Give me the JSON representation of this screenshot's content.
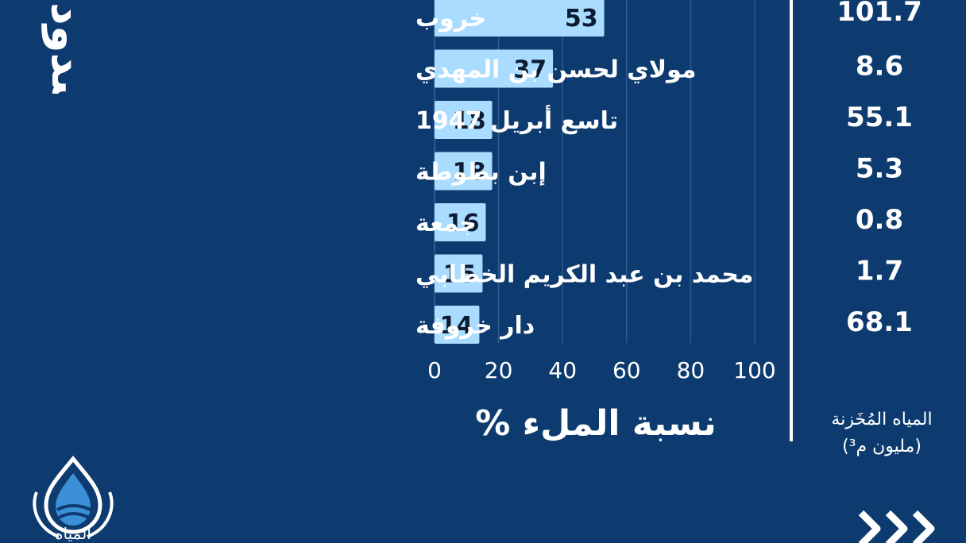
{
  "chart_data": {
    "type": "bar",
    "orientation": "horizontal",
    "categories": [
      "خروب",
      "مولاي لحسن بن المهدي",
      "تاسع أبريل 1947",
      "إبن بطوطة",
      "جمعة",
      "محمد بن عبد الكريم الخطابي",
      "دار خروفة"
    ],
    "values": [
      53,
      37,
      18,
      18,
      16,
      15,
      14
    ],
    "stored_values": [
      "101.7",
      "8.6",
      "55.1",
      "5.3",
      "0.8",
      "1.7",
      "68.1"
    ],
    "xticks": [
      "0",
      "20",
      "40",
      "60",
      "80",
      "100"
    ],
    "xlim": [
      0,
      100
    ],
    "xlabel": "نسبة الملء %",
    "stored_title_line1": "المياه المُخَزنة",
    "stored_title_line2": "(مليون م³)",
    "grid": true,
    "bar_color": "#a9dcff",
    "grid_color": "#2f5d92"
  },
  "partial_title": "سدود",
  "logo_text": "المياه والغابات",
  "colors": {
    "background": "#0e3b6f",
    "text": "#ffffff",
    "bar": "#a9dcff",
    "bar_value_text": "#0b1c33"
  },
  "icons": {
    "logo": "water-drop-logo-icon",
    "next": "triple-chevron-right-icon"
  }
}
